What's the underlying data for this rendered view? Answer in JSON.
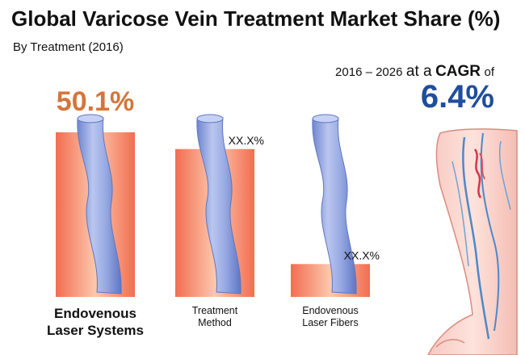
{
  "header": {
    "title": "Global Varicose Vein Treatment Market Share (%)",
    "subtitle": "By Treatment (2016)"
  },
  "cagr": {
    "period": "2016 – 2026",
    "at_a": "at a",
    "label": "CAGR",
    "of": "of",
    "value": "6.4%"
  },
  "colors": {
    "bar_highlight": "#f58a6e",
    "bar_mid": "#fbc2a8",
    "vein": "#8aa0dc",
    "value_highlight": "#d4763a",
    "cagr": "#1f4e9c"
  },
  "chart_data": {
    "type": "bar",
    "title": "Global Varicose Vein Treatment Market Share (%)",
    "subtitle": "By Treatment (2016)",
    "categories": [
      "Endovenous Laser Systems",
      "Treatment Method",
      "Endovenous Laser Fibers"
    ],
    "category_lines": [
      [
        "Endovenous",
        "Laser Systems"
      ],
      [
        "Treatment",
        "Method"
      ],
      [
        "Endovenous",
        "Laser Fibers"
      ]
    ],
    "values": [
      50.1,
      45,
      10
    ],
    "value_labels": [
      "50.1%",
      "XX.X%",
      "XX.X%"
    ],
    "ylim": [
      0,
      50.1
    ],
    "grid": false,
    "legend": "none"
  }
}
